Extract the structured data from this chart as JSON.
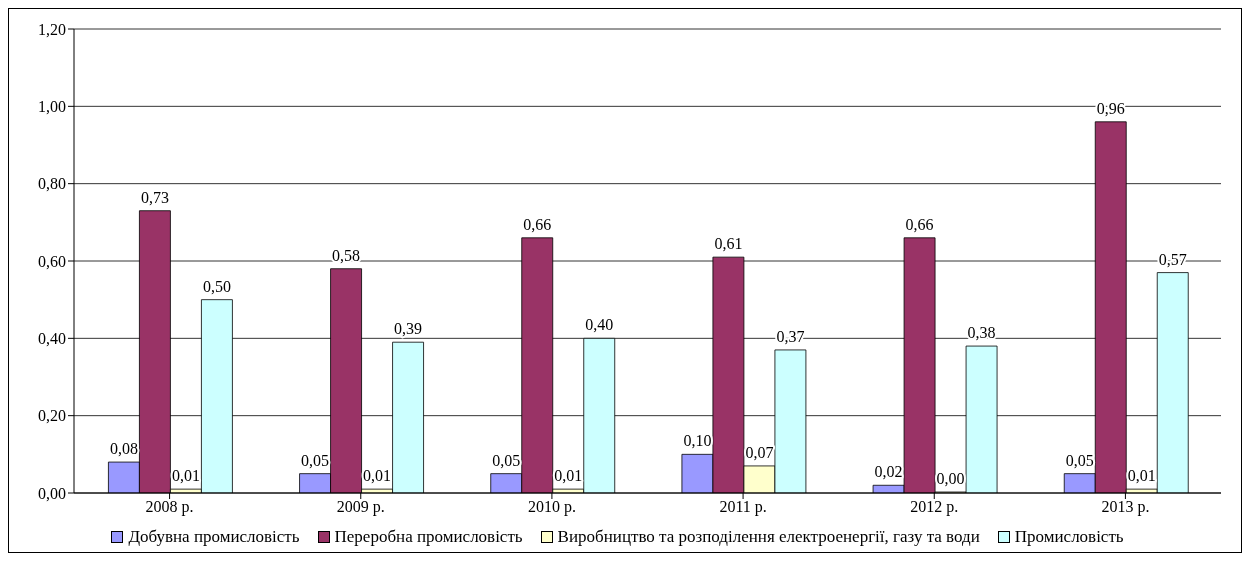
{
  "chart_data": {
    "type": "bar",
    "categories": [
      "2008 р.",
      "2009 р.",
      "2010 р.",
      "2011 р.",
      "2012 р.",
      "2013 р."
    ],
    "series": [
      {
        "name": "Добувна промисловість",
        "color": "#9999ff",
        "values": [
          0.08,
          0.05,
          0.05,
          0.1,
          0.02,
          0.05
        ],
        "value_labels": [
          "0,08",
          "0,05",
          "0,05",
          "0,10",
          "0,02",
          "0,05"
        ]
      },
      {
        "name": "Переробна промисловість",
        "color": "#993366",
        "values": [
          0.73,
          0.58,
          0.66,
          0.61,
          0.66,
          0.96
        ],
        "value_labels": [
          "0,73",
          "0,58",
          "0,66",
          "0,61",
          "0,66",
          "0,96"
        ]
      },
      {
        "name": "Виробництво та розподілення електроенергії, газу та води",
        "color": "#ffffcc",
        "values": [
          0.01,
          0.01,
          0.01,
          0.07,
          0.0,
          0.01
        ],
        "value_labels": [
          "0,01",
          "0,01",
          "0,01",
          "0,07",
          "0,00",
          "0,01"
        ]
      },
      {
        "name": "Промисловість",
        "color": "#ccffff",
        "values": [
          0.5,
          0.39,
          0.4,
          0.37,
          0.38,
          0.57
        ],
        "value_labels": [
          "0,50",
          "0,39",
          "0,40",
          "0,37",
          "0,38",
          "0,57"
        ]
      }
    ],
    "ylim": [
      0,
      1.2
    ],
    "yticks": [
      {
        "value": 0,
        "label": "0,00"
      },
      {
        "value": 0.2,
        "label": "0,20"
      },
      {
        "value": 0.4,
        "label": "0,40"
      },
      {
        "value": 0.6,
        "label": "0,60"
      },
      {
        "value": 0.8,
        "label": "0,80"
      },
      {
        "value": 1,
        "label": "1,00"
      },
      {
        "value": 1.2,
        "label": "1,20"
      }
    ],
    "grid": "y",
    "legend": "bottom"
  }
}
